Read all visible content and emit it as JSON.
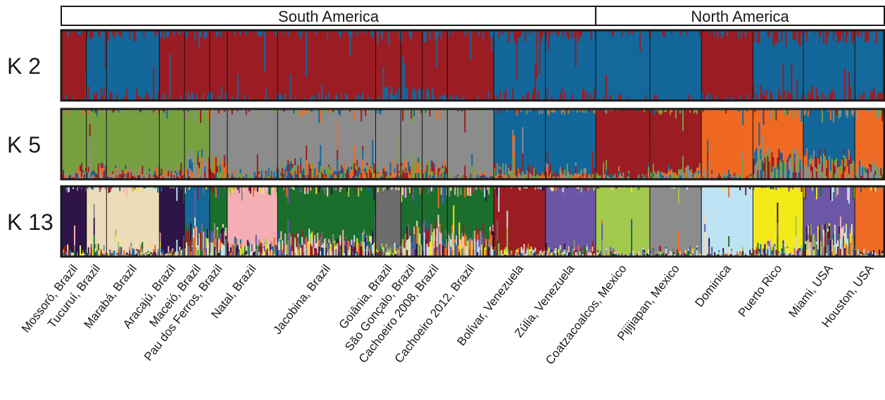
{
  "chart_data": {
    "type": "structure-admixture-barplot",
    "regions": [
      {
        "name": "South America",
        "populations": 14
      },
      {
        "name": "North America",
        "populations": 6
      }
    ],
    "populations": [
      "Mossoró, Brazil",
      "Tucuruí, Brazil",
      "Marabá, Brazil",
      "Aracajú, Brazil",
      "Maceió, Brazil",
      "Pau dos Ferros, Brazil",
      "Natal, Brazil",
      "Jacobina, Brazil",
      "Goiânia, Brazil",
      "São Gonçalo, Brazil",
      "Cachoeiro 2008, Brazil",
      "Cachoeiro 2012, Brazil",
      "Bolívar, Venezuela",
      "Zúlia, Venezuela",
      "Coatzacoalcos, Mexico",
      "Pijijiapan, Mexico",
      "Dominica",
      "Puerto Rico",
      "Miami, USA",
      "Houston, USA"
    ],
    "population_widths": [
      1.0,
      0.8,
      2.1,
      1.0,
      1.0,
      0.7,
      2.0,
      3.9,
      1.0,
      0.85,
      1.0,
      1.85,
      2.05,
      2.0,
      2.15,
      2.05,
      2.05,
      2.0,
      2.05,
      1.2
    ],
    "panels": [
      {
        "label": "K 2",
        "cluster_colors": [
          "#9b1c22",
          "#13679a"
        ],
        "dominant_cluster": [
          0,
          1,
          1,
          0,
          0,
          0,
          0,
          0,
          0,
          0,
          0,
          0,
          1,
          1,
          1,
          1,
          0,
          1,
          1,
          1
        ],
        "dominant_fraction": [
          0.97,
          0.85,
          0.92,
          0.95,
          0.93,
          0.94,
          0.96,
          0.96,
          0.88,
          0.9,
          0.9,
          0.95,
          0.9,
          0.9,
          0.99,
          0.99,
          0.95,
          0.85,
          0.88,
          0.9
        ]
      },
      {
        "label": "K 5",
        "cluster_colors": [
          "#8c8c8c",
          "#76a040",
          "#13679a",
          "#9b1c22",
          "#ef6923"
        ],
        "dominant_cluster": [
          1,
          1,
          1,
          1,
          1,
          0,
          0,
          0,
          0,
          0,
          0,
          0,
          2,
          2,
          3,
          3,
          4,
          4,
          2,
          4
        ],
        "dominant_fraction": [
          0.85,
          0.8,
          0.88,
          0.85,
          0.65,
          0.7,
          0.9,
          0.78,
          0.85,
          0.75,
          0.8,
          0.93,
          0.85,
          0.85,
          0.97,
          0.85,
          0.95,
          0.6,
          0.65,
          0.75
        ]
      },
      {
        "label": "K 13",
        "cluster_colors": [
          "#2e1448",
          "#eddcb8",
          "#1b6e2c",
          "#f5aeb4",
          "#6c6c6c",
          "#9b1c22",
          "#6b57a5",
          "#a2c94c",
          "#8c8c8c",
          "#bde3f4",
          "#f4ea18",
          "#ef6923",
          "#13679a"
        ],
        "dominant_cluster": [
          0,
          1,
          1,
          0,
          12,
          2,
          3,
          2,
          4,
          2,
          2,
          2,
          5,
          6,
          7,
          8,
          9,
          10,
          6,
          11
        ],
        "dominant_fraction": [
          0.92,
          0.85,
          0.88,
          0.93,
          0.6,
          0.6,
          0.75,
          0.7,
          0.85,
          0.55,
          0.55,
          0.6,
          0.9,
          0.85,
          0.95,
          0.93,
          0.95,
          0.85,
          0.6,
          0.9
        ]
      }
    ]
  }
}
